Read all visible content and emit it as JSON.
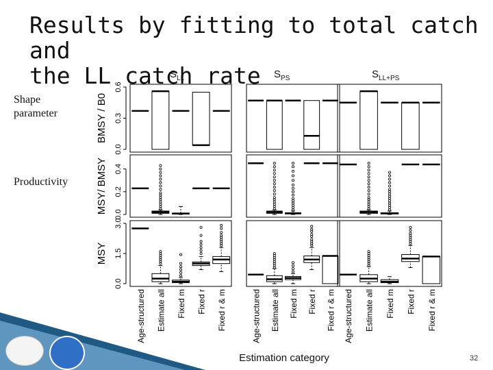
{
  "title_line1": "Results by fitting to total catch and",
  "title_line2": "the LL catch rate",
  "row_labels": [
    "Shape parameter",
    "Productivity"
  ],
  "column_labels": [
    {
      "main": "S",
      "sub": "LL"
    },
    {
      "main": "S",
      "sub": "PS"
    },
    {
      "main": "S",
      "sub": "LL+PS"
    }
  ],
  "xlabel": "Estimation category",
  "page_number": "32",
  "logos": [
    "CIAT IATTC",
    "NOAA"
  ],
  "colors": {
    "boxes": "#000000",
    "background": "#ffffff",
    "ribbon": "#1f5a84"
  },
  "chart_data": {
    "type": "box",
    "categories": [
      "Age-structured",
      "Estimate all",
      "Fixed m",
      "Fixed r",
      "Fixed r & m"
    ],
    "rows": [
      {
        "ylabel": "BMSY / B0",
        "ylim": [
          0,
          0.6
        ],
        "ticks": [
          "0.0",
          "0.3",
          "0.6"
        ]
      },
      {
        "ylabel": "MSY/ BMSY",
        "ylim": [
          0,
          0.5
        ],
        "ticks": [
          "0.0",
          "0.2",
          "0.4"
        ]
      },
      {
        "ylabel": "MSY",
        "ylim": [
          0,
          3.0
        ],
        "ticks": [
          "0.0",
          "1.5",
          "3.0"
        ]
      }
    ],
    "panels": [
      [
        [
          {
            "v": 0.37
          },
          {
            "q1": 0.0,
            "med": 0.56,
            "q3": 0.56
          },
          {
            "v": 0.37
          },
          {
            "q1": 0.04,
            "med": 0.04,
            "q3": 0.55
          },
          {
            "v": 0.37
          }
        ],
        [
          {
            "v": 0.23
          },
          {
            "q1": 0.01,
            "med": 0.02,
            "q3": 0.03,
            "lw": 0.0,
            "hw": 0.04,
            "out": [
              0.05,
              0.07,
              0.09,
              0.11,
              0.13,
              0.15,
              0.17,
              0.19,
              0.22,
              0.25,
              0.28,
              0.31,
              0.34,
              0.37,
              0.4,
              0.43
            ]
          },
          {
            "q1": 0.004,
            "med": 0.008,
            "q3": 0.012,
            "lw": 0.0,
            "hw": 0.07
          },
          {
            "v": 0.23
          },
          {
            "v": 0.23
          }
        ],
        [
          {
            "v": 2.75
          },
          {
            "q1": 0.1,
            "med": 0.25,
            "q3": 0.5,
            "lw": 0.0,
            "hw": 0.9,
            "out": [
              1.0,
              1.1,
              1.2,
              1.3,
              1.4,
              1.5,
              1.6
            ]
          },
          {
            "q1": 0.05,
            "med": 0.1,
            "q3": 0.18,
            "lw": 0.0,
            "hw": 0.3,
            "out": [
              0.4,
              0.55,
              0.7,
              0.85,
              1.0,
              1.45
            ]
          },
          {
            "q1": 0.9,
            "med": 1.0,
            "q3": 1.08,
            "lw": 0.7,
            "hw": 1.35,
            "out": [
              1.5,
              1.65,
              1.8,
              1.95,
              2.1,
              2.4,
              2.8
            ]
          },
          {
            "q1": 1.0,
            "med": 1.2,
            "q3": 1.35,
            "lw": 0.6,
            "hw": 1.8,
            "out": [
              1.9,
              2.0,
              2.1,
              2.2,
              2.3,
              2.4,
              2.55,
              2.75,
              2.9
            ]
          }
        ]
      ],
      [
        [
          {
            "v": 0.47
          },
          {
            "q1": 0.0,
            "med": 0.47,
            "q3": 0.47
          },
          {
            "v": 0.47
          },
          {
            "q1": 0.0,
            "med": 0.13,
            "q3": 0.47
          },
          {
            "v": 0.47
          }
        ],
        [
          {
            "v": 0.45
          },
          {
            "q1": 0.01,
            "med": 0.02,
            "q3": 0.03,
            "lw": 0.0,
            "hw": 0.04,
            "out": [
              0.05,
              0.07,
              0.09,
              0.11,
              0.13,
              0.15,
              0.18,
              0.21,
              0.24,
              0.27,
              0.3,
              0.33,
              0.36,
              0.39,
              0.42,
              0.45
            ]
          },
          {
            "q1": 0.005,
            "med": 0.01,
            "q3": 0.015,
            "lw": 0.0,
            "hw": 0.03,
            "out": [
              0.04,
              0.06,
              0.08,
              0.1,
              0.12,
              0.14,
              0.17,
              0.2,
              0.23,
              0.26,
              0.3,
              0.34,
              0.38,
              0.42,
              0.45
            ]
          },
          {
            "v": 0.45
          },
          {
            "v": 0.45
          }
        ],
        [
          {
            "v": 0.45
          },
          {
            "q1": 0.1,
            "med": 0.22,
            "q3": 0.4,
            "lw": 0.0,
            "hw": 0.75,
            "out": [
              0.8,
              0.9,
              1.0,
              1.1,
              1.2,
              1.3,
              1.4,
              1.5
            ]
          },
          {
            "q1": 0.2,
            "med": 0.28,
            "q3": 0.36,
            "lw": 0.0,
            "hw": 0.5,
            "out": [
              0.6,
              0.75,
              0.9,
              1.05
            ]
          },
          {
            "q1": 1.05,
            "med": 1.2,
            "q3": 1.38,
            "lw": 0.7,
            "hw": 1.8,
            "out": [
              1.9,
              2.0,
              2.1,
              2.2,
              2.35,
              2.45,
              2.6,
              2.7,
              2.85
            ]
          },
          {
            "q1": 0.0,
            "med": 1.38,
            "q3": 1.38
          }
        ]
      ],
      [
        [
          {
            "v": 0.45
          },
          {
            "q1": 0.0,
            "med": 0.56,
            "q3": 0.56
          },
          {
            "v": 0.45
          },
          {
            "q1": 0.0,
            "med": 0.45,
            "q3": 0.45
          },
          {
            "v": 0.45
          }
        ],
        [
          {
            "v": 0.44
          },
          {
            "q1": 0.01,
            "med": 0.02,
            "q3": 0.03,
            "lw": 0.0,
            "hw": 0.04,
            "out": [
              0.05,
              0.07,
              0.09,
              0.11,
              0.13,
              0.15,
              0.18,
              0.21,
              0.24,
              0.27,
              0.3,
              0.33,
              0.36,
              0.39,
              0.42,
              0.45
            ]
          },
          {
            "q1": 0.005,
            "med": 0.01,
            "q3": 0.015,
            "lw": 0.0,
            "hw": 0.03,
            "out": [
              0.04,
              0.06,
              0.08,
              0.1,
              0.12,
              0.14,
              0.16,
              0.18,
              0.2,
              0.22,
              0.25,
              0.28,
              0.31,
              0.34,
              0.37
            ]
          },
          {
            "v": 0.44
          },
          {
            "v": 0.44
          }
        ],
        [
          {
            "v": 0.45
          },
          {
            "q1": 0.1,
            "med": 0.25,
            "q3": 0.45,
            "lw": 0.0,
            "hw": 0.85,
            "out": [
              0.9,
              1.0,
              1.1,
              1.2,
              1.3,
              1.4,
              1.5,
              1.6
            ]
          },
          {
            "q1": 0.05,
            "med": 0.1,
            "q3": 0.2,
            "lw": 0.0,
            "hw": 0.35
          },
          {
            "q1": 1.1,
            "med": 1.25,
            "q3": 1.45,
            "lw": 0.8,
            "hw": 1.9,
            "out": [
              2.0,
              2.1,
              2.2,
              2.3,
              2.4,
              2.5,
              2.65,
              2.8
            ]
          },
          {
            "q1": 0.0,
            "med": 1.35,
            "q3": 1.35
          }
        ]
      ]
    ]
  }
}
